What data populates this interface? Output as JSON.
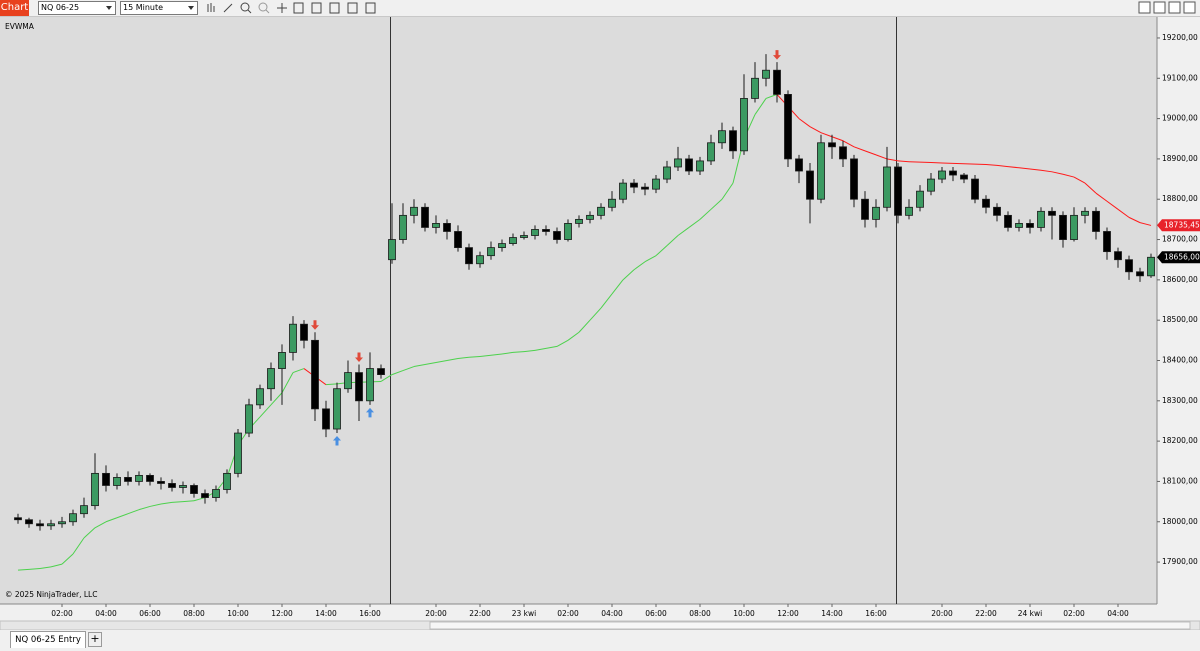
{
  "toolbar": {
    "app_label": "Chart",
    "instrument": "NQ 06-25",
    "interval": "15 Minute"
  },
  "tabs": [
    "NQ 06-25 Entry"
  ],
  "add_tab_label": "+",
  "chart_data": {
    "type": "candlestick",
    "indicator_label": "EVWMA",
    "copyright": "© 2025 NinjaTrader, LLC",
    "categories": [
      null,
      null,
      null,
      null,
      "02:00",
      null,
      null,
      null,
      "04:00",
      null,
      null,
      null,
      "06:00",
      null,
      null,
      null,
      "08:00",
      null,
      null,
      null,
      "10:00",
      null,
      null,
      null,
      "12:00",
      null,
      null,
      null,
      "14:00",
      null,
      null,
      null,
      "16:00",
      null,
      null,
      null,
      null,
      null,
      "20:00",
      null,
      null,
      null,
      "22:00",
      null,
      null,
      null,
      "23 kwi",
      null,
      null,
      null,
      "02:00",
      null,
      null,
      null,
      "04:00",
      null,
      null,
      null,
      "06:00",
      null,
      null,
      null,
      "08:00",
      null,
      null,
      null,
      "10:00",
      null,
      null,
      null,
      "12:00",
      null,
      null,
      null,
      "14:00",
      null,
      null,
      null,
      "16:00",
      null,
      null,
      null,
      null,
      null,
      "20:00",
      null,
      null,
      null,
      "22:00",
      null,
      null,
      null,
      "24 kwi",
      null,
      null,
      null,
      "02:00",
      null,
      null,
      null,
      "04:00",
      null,
      null,
      null
    ],
    "open": [
      18010,
      18005,
      17995,
      17990,
      17995,
      18000,
      18020,
      18040,
      18120,
      18090,
      18110,
      18100,
      18115,
      18100,
      18095,
      18085,
      18090,
      18070,
      18060,
      18080,
      18120,
      18220,
      18290,
      18330,
      18380,
      18420,
      18490,
      18450,
      18280,
      18230,
      18330,
      18370,
      18300,
      18380,
      18650,
      18700,
      18760,
      18780,
      18730,
      18740,
      18720,
      18680,
      18640,
      18660,
      18680,
      18690,
      18705,
      18710,
      18725,
      18720,
      18700,
      18740,
      18750,
      18760,
      18780,
      18800,
      18840,
      18830,
      18825,
      18850,
      18880,
      18900,
      18870,
      18895,
      18940,
      18970,
      18920,
      19050,
      19100,
      19120,
      19060,
      18900,
      18870,
      18800,
      18940,
      18930,
      18900,
      18800,
      18750,
      18780,
      18880,
      18760,
      18780,
      18820,
      18850,
      18870,
      18860,
      18850,
      18800,
      18780,
      18760,
      18730,
      18740,
      18730,
      18770,
      18760,
      18700,
      18760,
      18770,
      18720,
      18670,
      18650,
      18620,
      18610
    ],
    "high": [
      18020,
      18010,
      18005,
      18005,
      18012,
      18030,
      18060,
      18170,
      18140,
      18120,
      18125,
      18125,
      18120,
      18110,
      18105,
      18100,
      18095,
      18080,
      18090,
      18130,
      18230,
      18305,
      18340,
      18395,
      18440,
      18510,
      18500,
      18470,
      18300,
      18345,
      18400,
      18390,
      18420,
      18390,
      18790,
      18790,
      18800,
      18790,
      18760,
      18750,
      18735,
      18690,
      18670,
      18695,
      18700,
      18715,
      18720,
      18735,
      18735,
      18730,
      18750,
      18760,
      18770,
      18790,
      18820,
      18850,
      18850,
      18840,
      18860,
      18895,
      18930,
      18910,
      18905,
      18960,
      18990,
      18980,
      19110,
      19140,
      19160,
      19140,
      19070,
      18910,
      18890,
      18960,
      18960,
      18945,
      18910,
      18820,
      18800,
      18930,
      18890,
      18800,
      18835,
      18865,
      18880,
      18880,
      18865,
      18860,
      18810,
      18790,
      18770,
      18750,
      18750,
      18780,
      18780,
      18770,
      18780,
      18780,
      18780,
      18730,
      18680,
      18660,
      18630,
      18665
    ],
    "low": [
      17995,
      17985,
      17978,
      17980,
      17985,
      17990,
      18010,
      18030,
      18075,
      18080,
      18090,
      18090,
      18090,
      18080,
      18075,
      18070,
      18060,
      18045,
      18050,
      18070,
      18110,
      18210,
      18280,
      18300,
      18290,
      18400,
      18430,
      18250,
      18210,
      18220,
      18320,
      18250,
      18290,
      18355,
      18640,
      18690,
      18740,
      18720,
      18715,
      18700,
      18670,
      18625,
      18630,
      18650,
      18670,
      18685,
      18700,
      18700,
      18710,
      18690,
      18695,
      18730,
      18740,
      18750,
      18770,
      18790,
      18815,
      18810,
      18815,
      18840,
      18870,
      18860,
      18860,
      18885,
      18925,
      18900,
      18910,
      19040,
      19080,
      19040,
      18880,
      18840,
      18740,
      18790,
      18900,
      18880,
      18780,
      18730,
      18730,
      18770,
      18740,
      18750,
      18770,
      18810,
      18840,
      18845,
      18840,
      18790,
      18765,
      18745,
      18720,
      18720,
      18715,
      18720,
      18700,
      18680,
      18695,
      18740,
      18700,
      18650,
      18630,
      18600,
      18595,
      18605
    ],
    "close": [
      18005,
      17995,
      17990,
      17995,
      18000,
      18020,
      18040,
      18120,
      18090,
      18110,
      18100,
      18115,
      18100,
      18095,
      18085,
      18090,
      18070,
      18060,
      18080,
      18120,
      18220,
      18290,
      18330,
      18380,
      18420,
      18490,
      18450,
      18280,
      18230,
      18330,
      18370,
      18300,
      18380,
      18365,
      18700,
      18760,
      18780,
      18730,
      18740,
      18720,
      18680,
      18640,
      18660,
      18680,
      18690,
      18705,
      18710,
      18725,
      18720,
      18700,
      18740,
      18750,
      18760,
      18780,
      18800,
      18840,
      18830,
      18825,
      18850,
      18880,
      18900,
      18870,
      18895,
      18940,
      18970,
      18920,
      19050,
      19100,
      19120,
      19060,
      18900,
      18870,
      18800,
      18940,
      18930,
      18900,
      18800,
      18750,
      18780,
      18880,
      18760,
      18780,
      18820,
      18850,
      18870,
      18860,
      18850,
      18800,
      18780,
      18760,
      18730,
      18740,
      18730,
      18770,
      18760,
      18700,
      18760,
      18770,
      18720,
      18670,
      18650,
      18620,
      18610,
      18656
    ],
    "up_color": "#3c9a62",
    "down_color": "#000000",
    "outline_color": "#1a1a1a",
    "evwma": {
      "up_color": "#4cd14c",
      "down_color": "#ff1a1a",
      "values": [
        17880,
        17882,
        17884,
        17888,
        17895,
        17920,
        17960,
        17985,
        18000,
        18010,
        18020,
        18030,
        18038,
        18044,
        18048,
        18050,
        18052,
        18060,
        18075,
        18110,
        18190,
        18230,
        18260,
        18290,
        18320,
        18370,
        18380,
        18360,
        18340,
        18342,
        18345,
        18346,
        18347,
        18348,
        18365,
        18375,
        18385,
        18390,
        18395,
        18400,
        18405,
        18408,
        18410,
        18413,
        18416,
        18420,
        18422,
        18425,
        18430,
        18435,
        18450,
        18470,
        18500,
        18530,
        18565,
        18600,
        18625,
        18645,
        18660,
        18685,
        18710,
        18730,
        18750,
        18775,
        18800,
        18840,
        18950,
        19010,
        19050,
        19060,
        19030,
        19000,
        18980,
        18965,
        18955,
        18945,
        18930,
        18920,
        18910,
        18900,
        18895,
        18893,
        18892,
        18891,
        18890,
        18889,
        18888,
        18887,
        18886,
        18884,
        18881,
        18878,
        18875,
        18872,
        18868,
        18862,
        18855,
        18840,
        18815,
        18795,
        18775,
        18755,
        18742,
        18735
      ]
    },
    "sell_signals": [
      27,
      31,
      69
    ],
    "buy_signals": [
      29,
      32
    ],
    "signal_sell_color": "#e04a3a",
    "signal_buy_color": "#4a90e2",
    "session_starts": [
      34,
      80
    ],
    "ylim": [
      17796,
      19252
    ],
    "yticks": [
      {
        "value": 17900,
        "label": "17900,00"
      },
      {
        "value": 18000,
        "label": "18000,00"
      },
      {
        "value": 18100,
        "label": "18100,00"
      },
      {
        "value": 18200,
        "label": "18200,00"
      },
      {
        "value": 18300,
        "label": "18300,00"
      },
      {
        "value": 18400,
        "label": "18400,00"
      },
      {
        "value": 18500,
        "label": "18500,00"
      },
      {
        "value": 18600,
        "label": "18600,00"
      },
      {
        "value": 18700,
        "label": "18700,00"
      },
      {
        "value": 18800,
        "label": "18800,00"
      },
      {
        "value": 18900,
        "label": "18900,00"
      },
      {
        "value": 19000,
        "label": "19000,00"
      },
      {
        "value": 19100,
        "label": "19100,00"
      },
      {
        "value": 19200,
        "label": "19200,00"
      }
    ],
    "grid": false,
    "price_markers": [
      {
        "value": 18735.45,
        "label": "18735,45",
        "color": "#e8222a"
      },
      {
        "value": 18656,
        "label": "18656,00",
        "color": "#000000"
      }
    ]
  }
}
